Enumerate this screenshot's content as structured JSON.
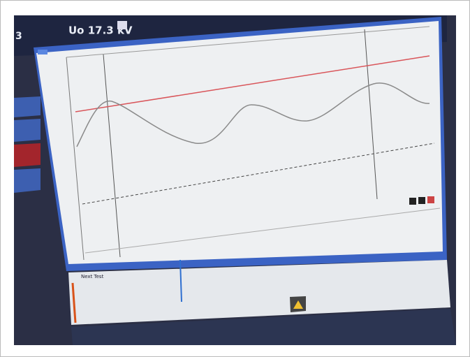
{
  "header": {
    "channel": "3",
    "voltage": "Uo 17.3 kV"
  },
  "lower_panel": {
    "label": "Next Test"
  }
}
